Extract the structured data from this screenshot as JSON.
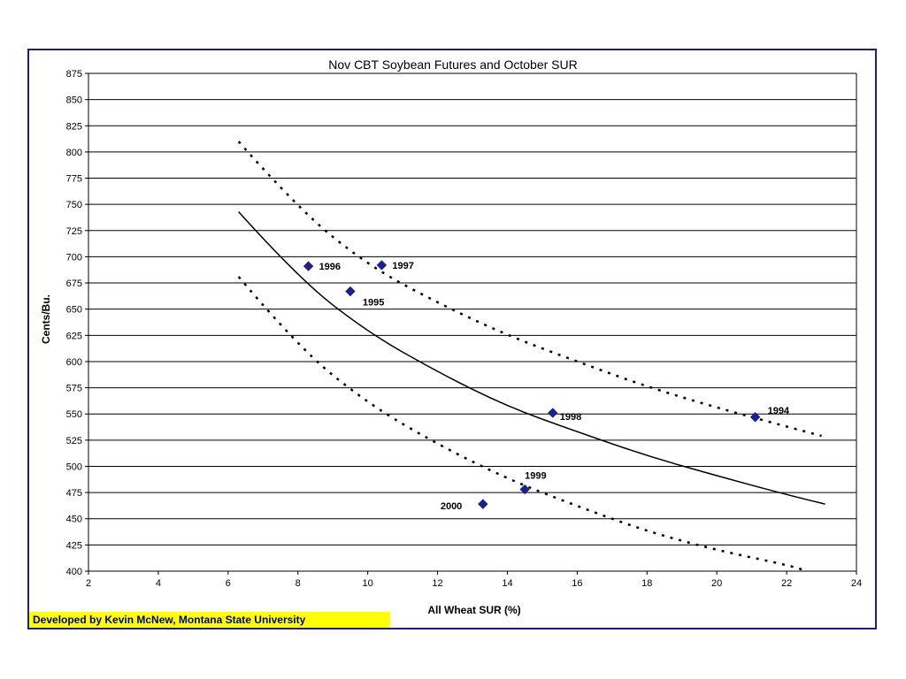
{
  "chart_data": {
    "type": "scatter",
    "title": "Nov CBT Soybean Futures and October SUR",
    "xlabel": "All Wheat SUR (%)",
    "ylabel": "Cents/Bu.",
    "xlim": [
      2,
      24
    ],
    "ylim": [
      400,
      875
    ],
    "xticks": [
      "2",
      "4",
      "6",
      "8",
      "10",
      "12",
      "14",
      "16",
      "18",
      "20",
      "22",
      "24"
    ],
    "yticks": [
      "400",
      "425",
      "450",
      "475",
      "500",
      "525",
      "550",
      "575",
      "600",
      "625",
      "650",
      "675",
      "700",
      "725",
      "750",
      "775",
      "800",
      "825",
      "850",
      "875"
    ],
    "grid": "horizontal",
    "points": [
      {
        "label": "1994",
        "x": 21.1,
        "y": 547
      },
      {
        "label": "1995",
        "x": 9.5,
        "y": 667
      },
      {
        "label": "1996",
        "x": 8.3,
        "y": 691
      },
      {
        "label": "1997",
        "x": 10.4,
        "y": 692
      },
      {
        "label": "1998",
        "x": 15.3,
        "y": 551
      },
      {
        "label": "1999",
        "x": 14.5,
        "y": 478
      },
      {
        "label": "2000",
        "x": 13.3,
        "y": 464
      }
    ],
    "curves": [
      {
        "style": "solid",
        "x": [
          6.3,
          8,
          10,
          12,
          14,
          16,
          18,
          20,
          22,
          23.1
        ],
        "y": [
          743,
          680,
          628,
          590,
          557,
          533,
          510,
          491,
          473,
          464
        ]
      },
      {
        "style": "dotted",
        "x": [
          6.3,
          8,
          10,
          12,
          14,
          16,
          18,
          20,
          22,
          23
        ],
        "y": [
          810,
          746,
          692,
          656,
          625,
          600,
          576,
          556,
          538,
          529
        ]
      },
      {
        "style": "dotted",
        "x": [
          6.3,
          8,
          10,
          12,
          14,
          16,
          18,
          20,
          22,
          22.6
        ],
        "y": [
          681,
          614,
          560,
          521,
          488,
          462,
          438,
          420,
          406,
          400
        ]
      }
    ],
    "marker_color": "#1f1f8c"
  },
  "footer": {
    "credit": "Developed by Kevin McNew, Montana State University"
  }
}
